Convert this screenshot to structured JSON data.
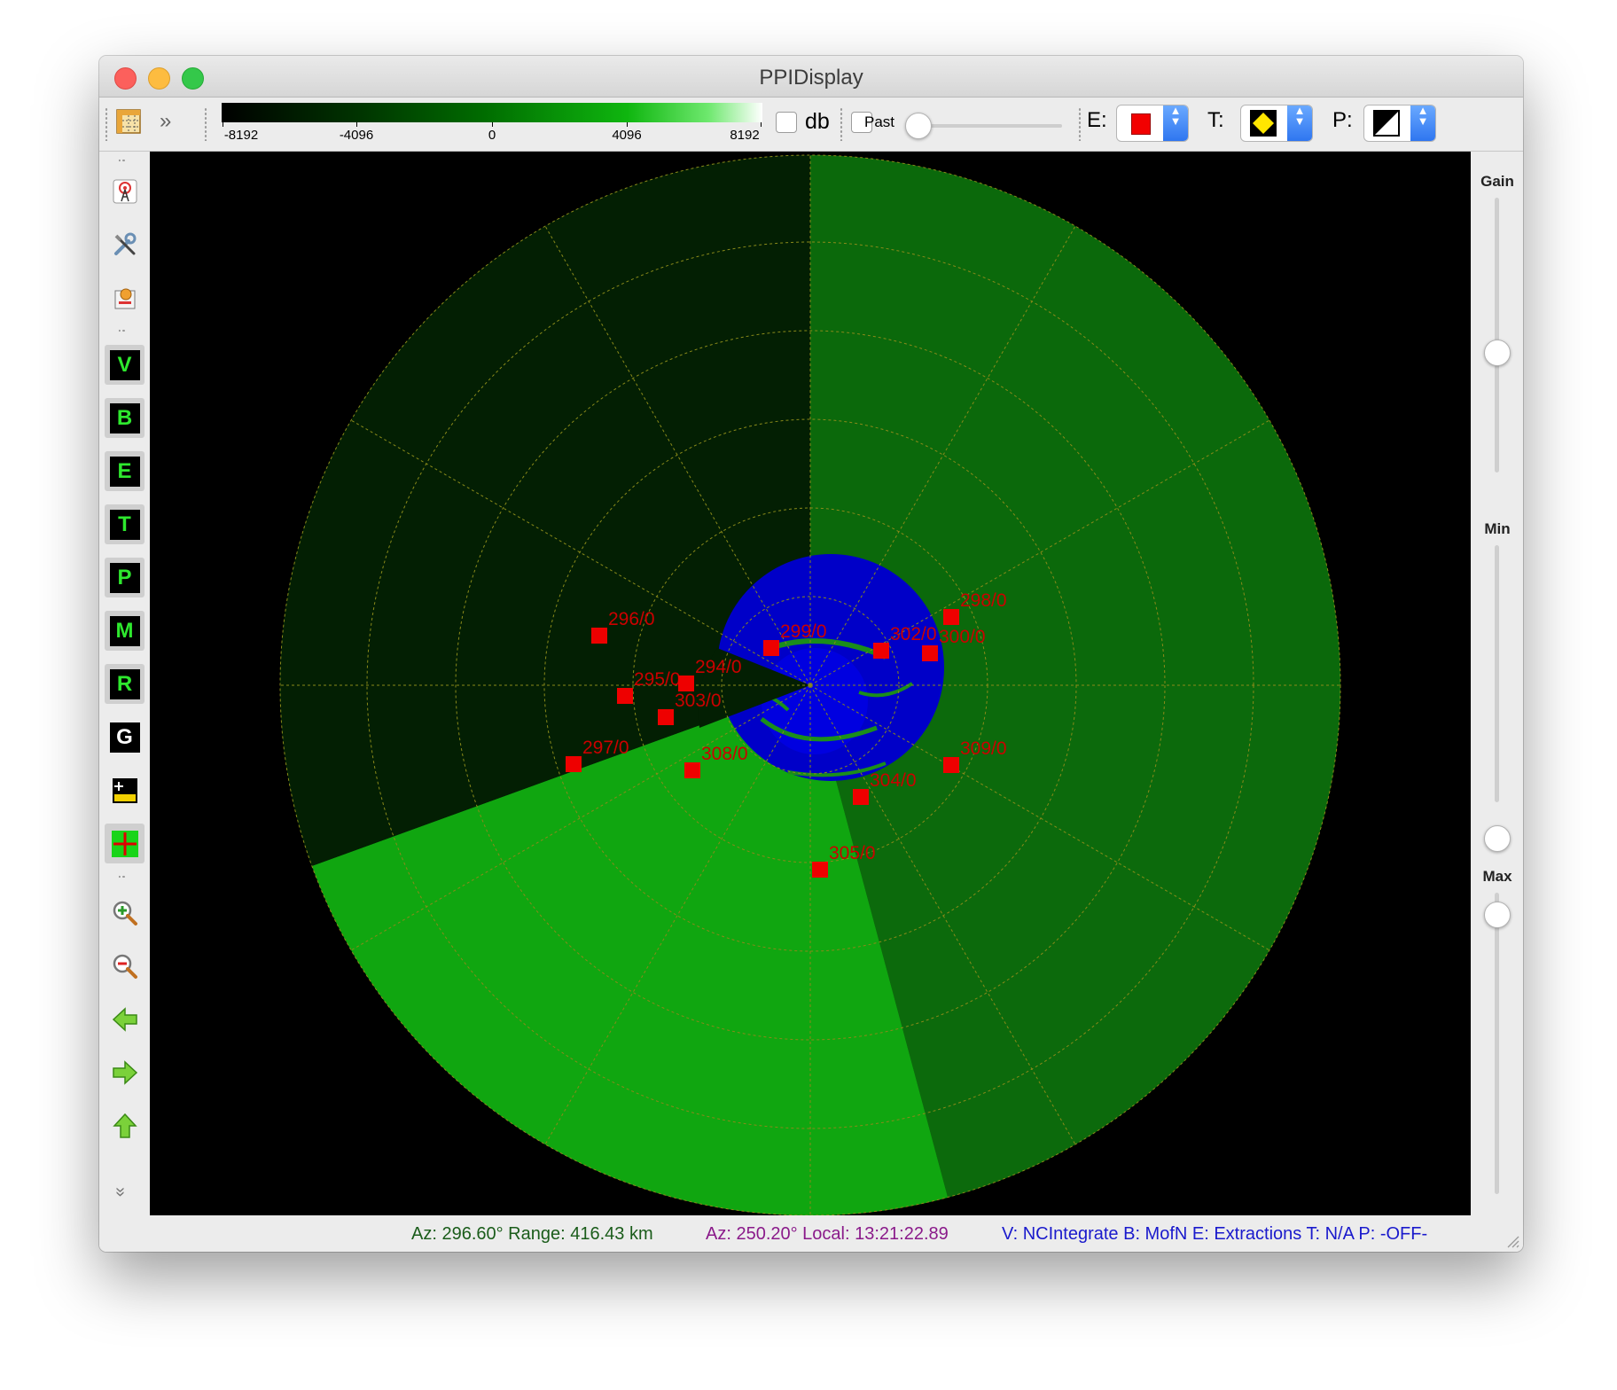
{
  "window": {
    "title": "PPIDisplay"
  },
  "toolbar": {
    "colorbar_ticks": [
      "-8192",
      "-4096",
      "0",
      "4096",
      "8192"
    ],
    "db_label": "db",
    "past_label": "Past",
    "e_label": "E:",
    "t_label": "T:",
    "p_label": "P:"
  },
  "left_toolbar": {
    "buttons": [
      "V",
      "B",
      "E",
      "T",
      "P",
      "M",
      "R",
      "G"
    ]
  },
  "right_panel": {
    "gain_label": "Gain",
    "min_label": "Min",
    "max_label": "Max"
  },
  "radar": {
    "tracks": [
      {
        "label": "296/0"
      },
      {
        "label": "298/0"
      },
      {
        "label": "299/0"
      },
      {
        "label": "302/0"
      },
      {
        "label": "300/0"
      },
      {
        "label": "295/0"
      },
      {
        "label": "294/0"
      },
      {
        "label": "303/0"
      },
      {
        "label": "297/0"
      },
      {
        "label": "308/0"
      },
      {
        "label": "309/0"
      },
      {
        "label": "304/0"
      },
      {
        "label": "305/0"
      }
    ]
  },
  "statusbar": {
    "cursor": "Az: 296.60° Range: 416.43 km",
    "time": "Az: 250.20° Local: 13:21:22.89",
    "modes": "V: NCIntegrate B: MofN E: Extractions T: N/A P: -OFF-"
  },
  "colors": {
    "status_cursor": "#1a5c1a",
    "status_time": "#8a1a8a",
    "status_modes": "#1a1acc",
    "track": "#cc0000",
    "accent_green": "#2ee82e"
  }
}
